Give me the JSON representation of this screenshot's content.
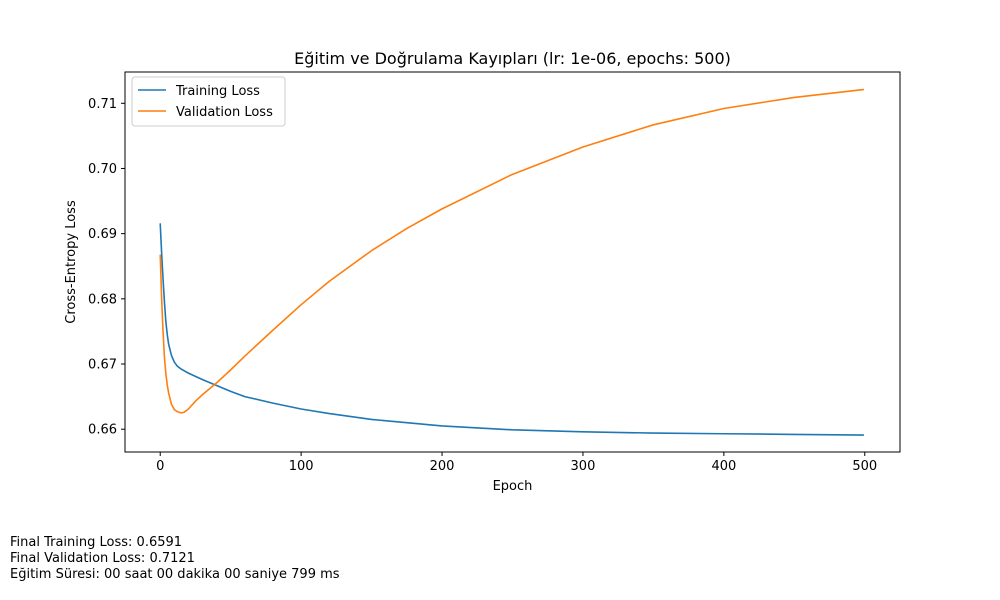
{
  "chart_data": {
    "type": "line",
    "title": "Eğitim ve Doğrulama Kayıpları (lr: 1e-06, epochs: 500)",
    "xlabel": "Epoch",
    "ylabel": "Cross-Entropy Loss",
    "xlim": [
      -25,
      525
    ],
    "ylim": [
      0.6565,
      0.7148
    ],
    "xticks": [
      0,
      100,
      200,
      300,
      400,
      500
    ],
    "yticks": [
      0.66,
      0.67,
      0.68,
      0.69,
      0.7,
      0.71
    ],
    "ytick_labels": [
      "0.66",
      "0.67",
      "0.68",
      "0.69",
      "0.70",
      "0.71"
    ],
    "grid": false,
    "legend_position": "top-left",
    "series": [
      {
        "name": "Training Loss",
        "color": "#1f77b4",
        "x": [
          0,
          1,
          2,
          3,
          4,
          5,
          6,
          8,
          10,
          12,
          15,
          20,
          25,
          30,
          40,
          50,
          60,
          80,
          100,
          120,
          150,
          175,
          200,
          250,
          300,
          350,
          400,
          450,
          499
        ],
        "y": [
          0.6915,
          0.687,
          0.683,
          0.6795,
          0.6765,
          0.6745,
          0.673,
          0.6713,
          0.6703,
          0.6697,
          0.6692,
          0.6686,
          0.6681,
          0.6676,
          0.6667,
          0.6658,
          0.665,
          0.664,
          0.6631,
          0.6624,
          0.6615,
          0.661,
          0.6605,
          0.6599,
          0.6596,
          0.6594,
          0.6593,
          0.6592,
          0.6591
        ]
      },
      {
        "name": "Validation Loss",
        "color": "#ff7f0e",
        "x": [
          0,
          1,
          2,
          3,
          4,
          5,
          6,
          8,
          10,
          12,
          15,
          17,
          20,
          25,
          30,
          40,
          50,
          60,
          80,
          100,
          120,
          150,
          175,
          200,
          250,
          300,
          350,
          400,
          450,
          499
        ],
        "y": [
          0.6867,
          0.68,
          0.675,
          0.671,
          0.6685,
          0.6668,
          0.6655,
          0.6638,
          0.663,
          0.6627,
          0.6625,
          0.6626,
          0.6631,
          0.6643,
          0.6653,
          0.6671,
          0.6691,
          0.6712,
          0.6752,
          0.6791,
          0.6827,
          0.6874,
          0.6908,
          0.6938,
          0.6991,
          0.7033,
          0.7067,
          0.7092,
          0.7109,
          0.7121
        ]
      }
    ]
  },
  "footer": {
    "final_training": "Final Training Loss: 0.6591",
    "final_validation": "Final Validation Loss: 0.7121",
    "training_time": "Eğitim Süresi: 00 saat 00 dakika 00 saniye 799 ms"
  }
}
